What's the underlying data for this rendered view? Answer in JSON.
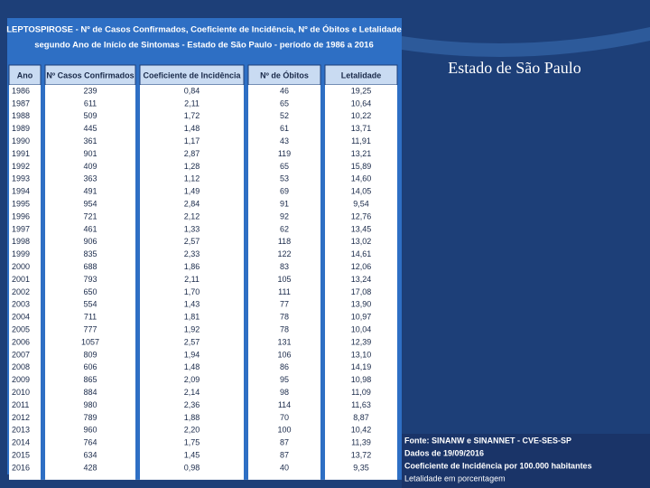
{
  "slide_title": "Estado de São Paulo",
  "table": {
    "title": [
      "LEPTOSPIROSE - Nº de Casos Confirmados, Coeficiente de Incidência, Nº de Óbitos e Letalidade",
      "segundo Ano de Início de Sintomas - Estado de São Paulo - período de 1986 a 2016"
    ],
    "headers": [
      "Ano",
      "Nº Casos Confirmados",
      "Coeficiente de Incidência",
      "Nº de Óbitos",
      "Letalidade"
    ],
    "rows": [
      [
        "1986",
        "239",
        "0,84",
        "46",
        "19,25"
      ],
      [
        "1987",
        "611",
        "2,11",
        "65",
        "10,64"
      ],
      [
        "1988",
        "509",
        "1,72",
        "52",
        "10,22"
      ],
      [
        "1989",
        "445",
        "1,48",
        "61",
        "13,71"
      ],
      [
        "1990",
        "361",
        "1,17",
        "43",
        "11,91"
      ],
      [
        "1991",
        "901",
        "2,87",
        "119",
        "13,21"
      ],
      [
        "1992",
        "409",
        "1,28",
        "65",
        "15,89"
      ],
      [
        "1993",
        "363",
        "1,12",
        "53",
        "14,60"
      ],
      [
        "1994",
        "491",
        "1,49",
        "69",
        "14,05"
      ],
      [
        "1995",
        "954",
        "2,84",
        "91",
        "9,54"
      ],
      [
        "1996",
        "721",
        "2,12",
        "92",
        "12,76"
      ],
      [
        "1997",
        "461",
        "1,33",
        "62",
        "13,45"
      ],
      [
        "1998",
        "906",
        "2,57",
        "118",
        "13,02"
      ],
      [
        "1999",
        "835",
        "2,33",
        "122",
        "14,61"
      ],
      [
        "2000",
        "688",
        "1,86",
        "83",
        "12,06"
      ],
      [
        "2001",
        "793",
        "2,11",
        "105",
        "13,24"
      ],
      [
        "2002",
        "650",
        "1,70",
        "111",
        "17,08"
      ],
      [
        "2003",
        "554",
        "1,43",
        "77",
        "13,90"
      ],
      [
        "2004",
        "711",
        "1,81",
        "78",
        "10,97"
      ],
      [
        "2005",
        "777",
        "1,92",
        "78",
        "10,04"
      ],
      [
        "2006",
        "1057",
        "2,57",
        "131",
        "12,39"
      ],
      [
        "2007",
        "809",
        "1,94",
        "106",
        "13,10"
      ],
      [
        "2008",
        "606",
        "1,48",
        "86",
        "14,19"
      ],
      [
        "2009",
        "865",
        "2,09",
        "95",
        "10,98"
      ],
      [
        "2010",
        "884",
        "2,14",
        "98",
        "11,09"
      ],
      [
        "2011",
        "980",
        "2,36",
        "114",
        "11,63"
      ],
      [
        "2012",
        "789",
        "1,88",
        "70",
        "8,87"
      ],
      [
        "2013",
        "960",
        "2,20",
        "100",
        "10,42"
      ],
      [
        "2014",
        "764",
        "1,75",
        "87",
        "11,39"
      ],
      [
        "2015",
        "634",
        "1,45",
        "87",
        "13,72"
      ],
      [
        "2016",
        "428",
        "0,98",
        "40",
        "9,35"
      ]
    ]
  },
  "notes": [
    "Fonte: SINANW e SINANNET - CVE-SES-SP",
    "Dados de 19/09/2016",
    "Coeficiente de Incidência por 100.000 habitantes",
    "Letalidade em porcentagem"
  ]
}
